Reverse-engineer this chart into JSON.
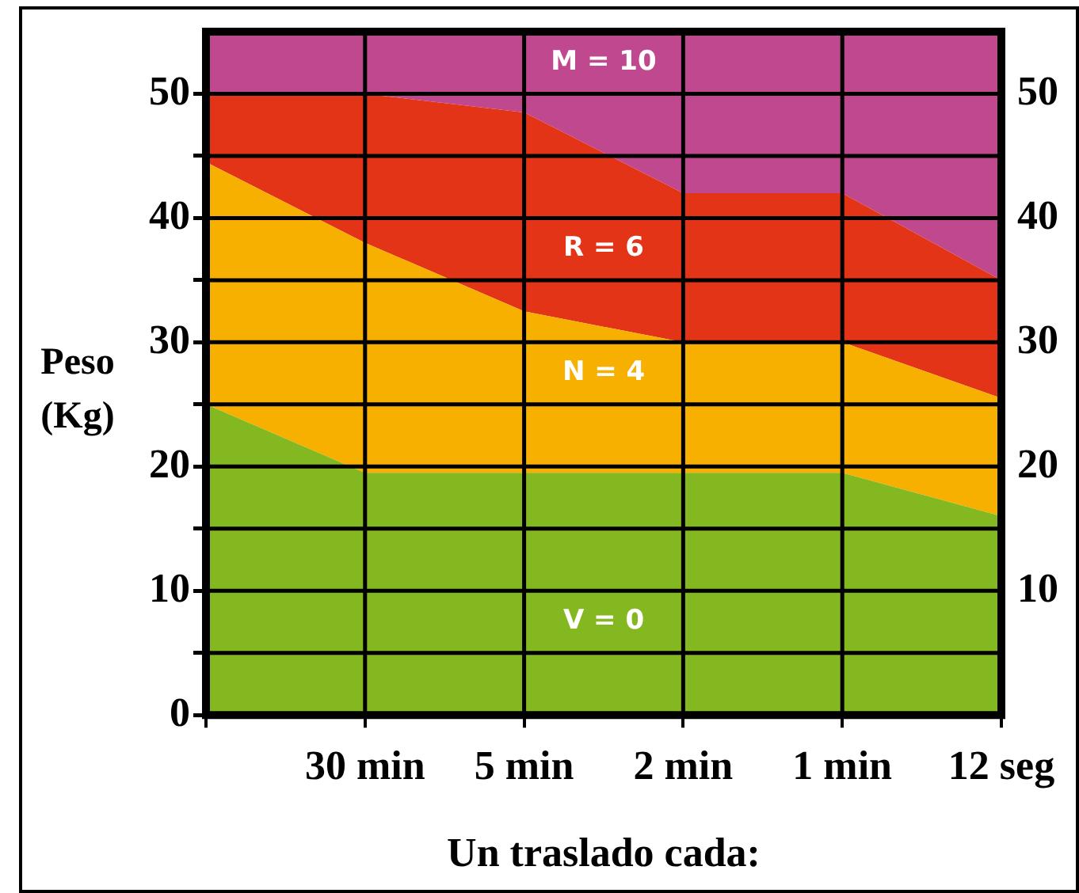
{
  "chart_data": {
    "type": "area",
    "stacked": true,
    "xlabel": "Un traslado cada:",
    "ylabel": "Peso (Kg)",
    "categories": [
      null,
      "30 min",
      "5 min",
      "2 min",
      "1 min",
      "12 seg"
    ],
    "series": [
      {
        "name": "V = 0",
        "color": "#84b820",
        "values": [
          25,
          19.5,
          19.5,
          19.5,
          19.5,
          16
        ]
      },
      {
        "name": "N = 4",
        "color": "#f8b000",
        "values": [
          19.5,
          18.5,
          13,
          10.5,
          10.5,
          9.5
        ]
      },
      {
        "name": "R = 6",
        "color": "#e33418",
        "values": [
          5.5,
          12,
          16,
          12,
          12,
          9.5
        ]
      },
      {
        "name": "M = 10",
        "color": "#c0488f",
        "values": [
          5,
          5,
          6.5,
          13,
          13,
          20
        ]
      }
    ],
    "ylim": [
      0,
      55
    ],
    "yticks": [
      0,
      {
        "value": 5,
        "label": null
      },
      10,
      {
        "value": 15,
        "label": null
      },
      20,
      {
        "value": 25,
        "label": null
      },
      30,
      {
        "value": 35,
        "label": null
      },
      40,
      {
        "value": 45,
        "label": null
      },
      50
    ],
    "y2lim": [
      0,
      55
    ],
    "y2ticks": [
      10,
      20,
      30,
      40,
      50
    ],
    "grid": true,
    "legend": false
  }
}
